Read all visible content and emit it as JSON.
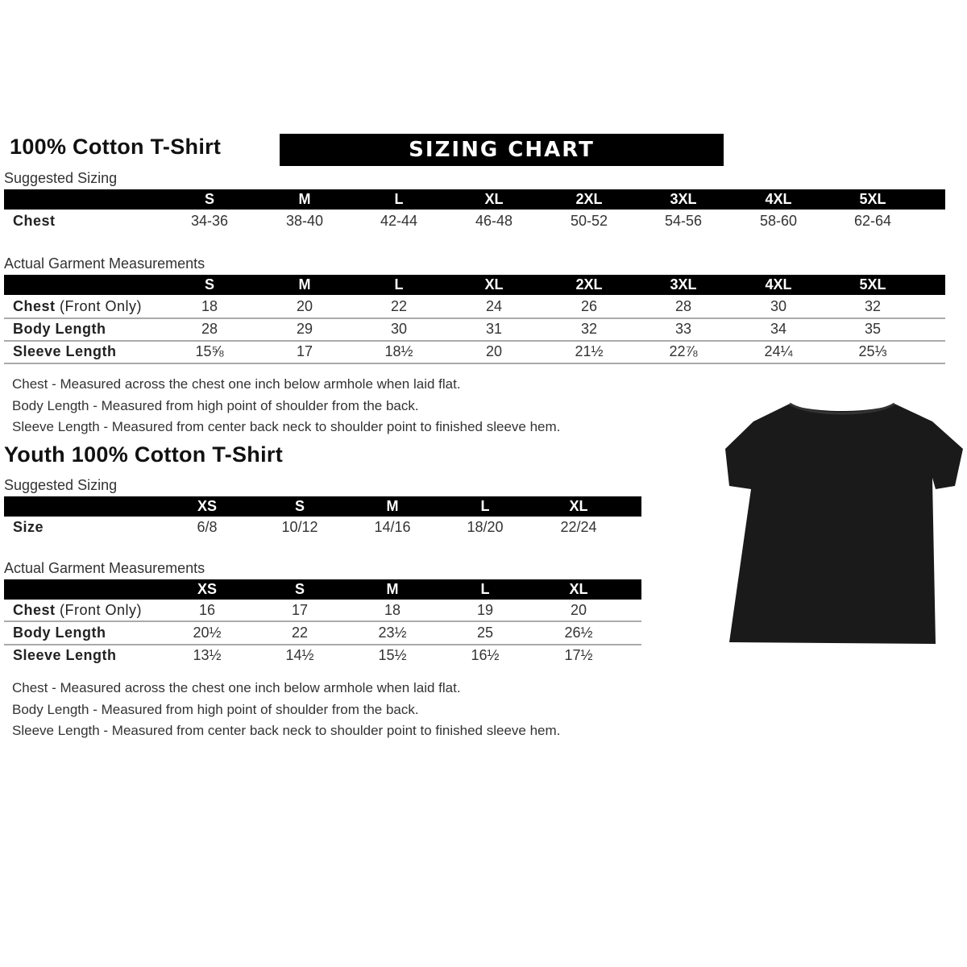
{
  "adult": {
    "title": "100% Cotton T-Shirt",
    "banner": "SIZING CHART",
    "suggested": {
      "label": "Suggested Sizing",
      "sizes": [
        "S",
        "M",
        "L",
        "XL",
        "2XL",
        "3XL",
        "4XL",
        "5XL"
      ],
      "rows": [
        {
          "label": "Chest",
          "note": "",
          "values": [
            "34-36",
            "38-40",
            "42-44",
            "46-48",
            "50-52",
            "54-56",
            "58-60",
            "62-64"
          ]
        }
      ]
    },
    "actual": {
      "label": "Actual Garment Measurements",
      "sizes": [
        "S",
        "M",
        "L",
        "XL",
        "2XL",
        "3XL",
        "4XL",
        "5XL"
      ],
      "rows": [
        {
          "label": "Chest",
          "note": " (Front Only)",
          "values": [
            "18",
            "20",
            "22",
            "24",
            "26",
            "28",
            "30",
            "32"
          ]
        },
        {
          "label": "Body Length",
          "note": "",
          "values": [
            "28",
            "29",
            "30",
            "31",
            "32",
            "33",
            "34",
            "35"
          ]
        },
        {
          "label": "Sleeve Length",
          "note": "",
          "values": [
            "15⅝",
            "17",
            "18½",
            "20",
            "21½",
            "22⅞",
            "24¼",
            "25⅓"
          ]
        }
      ]
    },
    "notes": [
      "Chest - Measured across the chest one inch below armhole when laid flat.",
      "Body Length - Measured from high point of shoulder from the back.",
      "Sleeve Length - Measured from center back neck to shoulder point to finished sleeve hem."
    ]
  },
  "youth": {
    "title": "Youth 100% Cotton T-Shirt",
    "suggested": {
      "label": "Suggested Sizing",
      "sizes": [
        "XS",
        "S",
        "M",
        "L",
        "XL"
      ],
      "rows": [
        {
          "label": "Size",
          "note": "",
          "values": [
            "6/8",
            "10/12",
            "14/16",
            "18/20",
            "22/24"
          ]
        }
      ]
    },
    "actual": {
      "label": "Actual Garment Measurements",
      "sizes": [
        "XS",
        "S",
        "M",
        "L",
        "XL"
      ],
      "rows": [
        {
          "label": "Chest",
          "note": " (Front Only)",
          "values": [
            "16",
            "17",
            "18",
            "19",
            "20"
          ]
        },
        {
          "label": "Body Length",
          "note": "",
          "values": [
            "20½",
            "22",
            "23½",
            "25",
            "26½"
          ]
        },
        {
          "label": "Sleeve Length",
          "note": "",
          "values": [
            "13½",
            "14½",
            "15½",
            "16½",
            "17½"
          ]
        }
      ]
    },
    "notes": [
      "Chest - Measured across the chest one inch below armhole when laid flat.",
      "Body Length - Measured from high point of shoulder from the back.",
      "Sleeve Length - Measured from center back neck to shoulder point to finished sleeve hem."
    ]
  },
  "image": {
    "icon": "black-t-shirt-icon",
    "color": "#1a1a1a"
  }
}
